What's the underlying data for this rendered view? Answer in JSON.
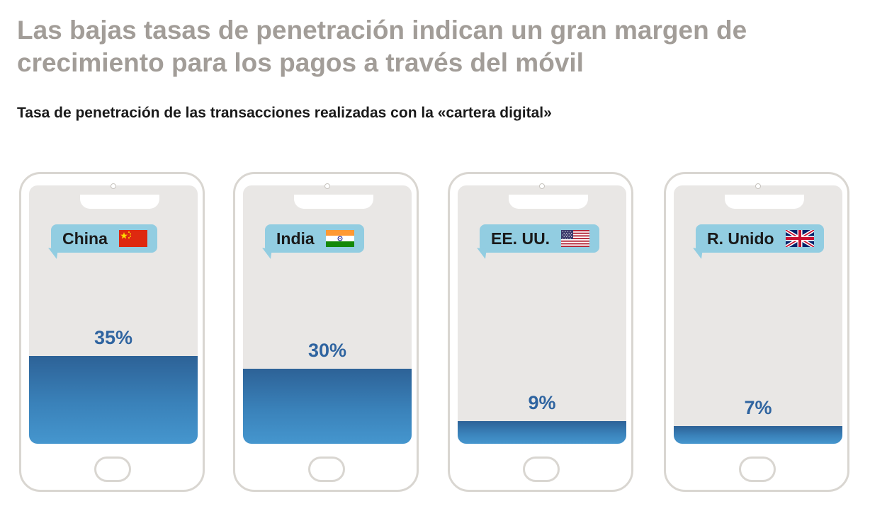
{
  "title": "Las bajas tasas de penetración indican un gran margen de crecimiento para los pagos a través del móvil",
  "subtitle": "Tasa de penetración de las transacciones realizadas con la «cartera digital»",
  "colors": {
    "title": "#a29d98",
    "bar_top": "#2d6297",
    "bar_bottom": "#4596ce",
    "bubble": "#92cde1",
    "value_text": "#2f64a0",
    "screen": "#e9e7e5",
    "phone_frame": "#d9d6d1"
  },
  "chart_data": {
    "type": "bar",
    "categories": [
      "China",
      "India",
      "EE. UU.",
      "R. Unido"
    ],
    "values": [
      35,
      30,
      9,
      7
    ],
    "value_labels": [
      "35%",
      "30%",
      "9%",
      "7%"
    ],
    "flags": [
      "china-flag-icon",
      "india-flag-icon",
      "usa-flag-icon",
      "uk-flag-icon"
    ],
    "unit": "%",
    "ylim": [
      0,
      100
    ],
    "grid": false,
    "xlabel": "",
    "ylabel": ""
  }
}
